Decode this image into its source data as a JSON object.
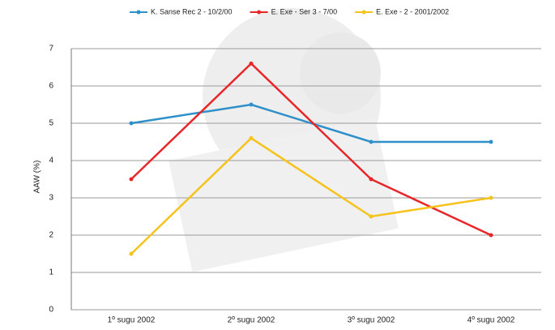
{
  "chart_data": {
    "type": "line",
    "y_label": "AAW (%)",
    "categories": [
      "1º sugu 2002",
      "2º sugu 2002",
      "3º sugu 2002",
      "4º sugu 2002"
    ],
    "series": [
      {
        "name": "K. Sanse Rec 2 - 10/2/00",
        "color": "#2e8fc9",
        "values": [
          5.0,
          5.5,
          4.5,
          4.5
        ]
      },
      {
        "name": "E. Exe - Ser 3 - 7/00",
        "color": "#e8262a",
        "values": [
          3.5,
          6.6,
          3.5,
          2.0
        ]
      },
      {
        "name": "E. Exe - 2 - 2001/2002",
        "color": "#f6c21c",
        "values": [
          1.5,
          4.6,
          2.5,
          3.0
        ]
      }
    ],
    "ylim": [
      0,
      7
    ],
    "yticks": [
      0,
      1,
      2,
      3,
      4,
      5,
      6,
      7
    ],
    "grid": true
  }
}
